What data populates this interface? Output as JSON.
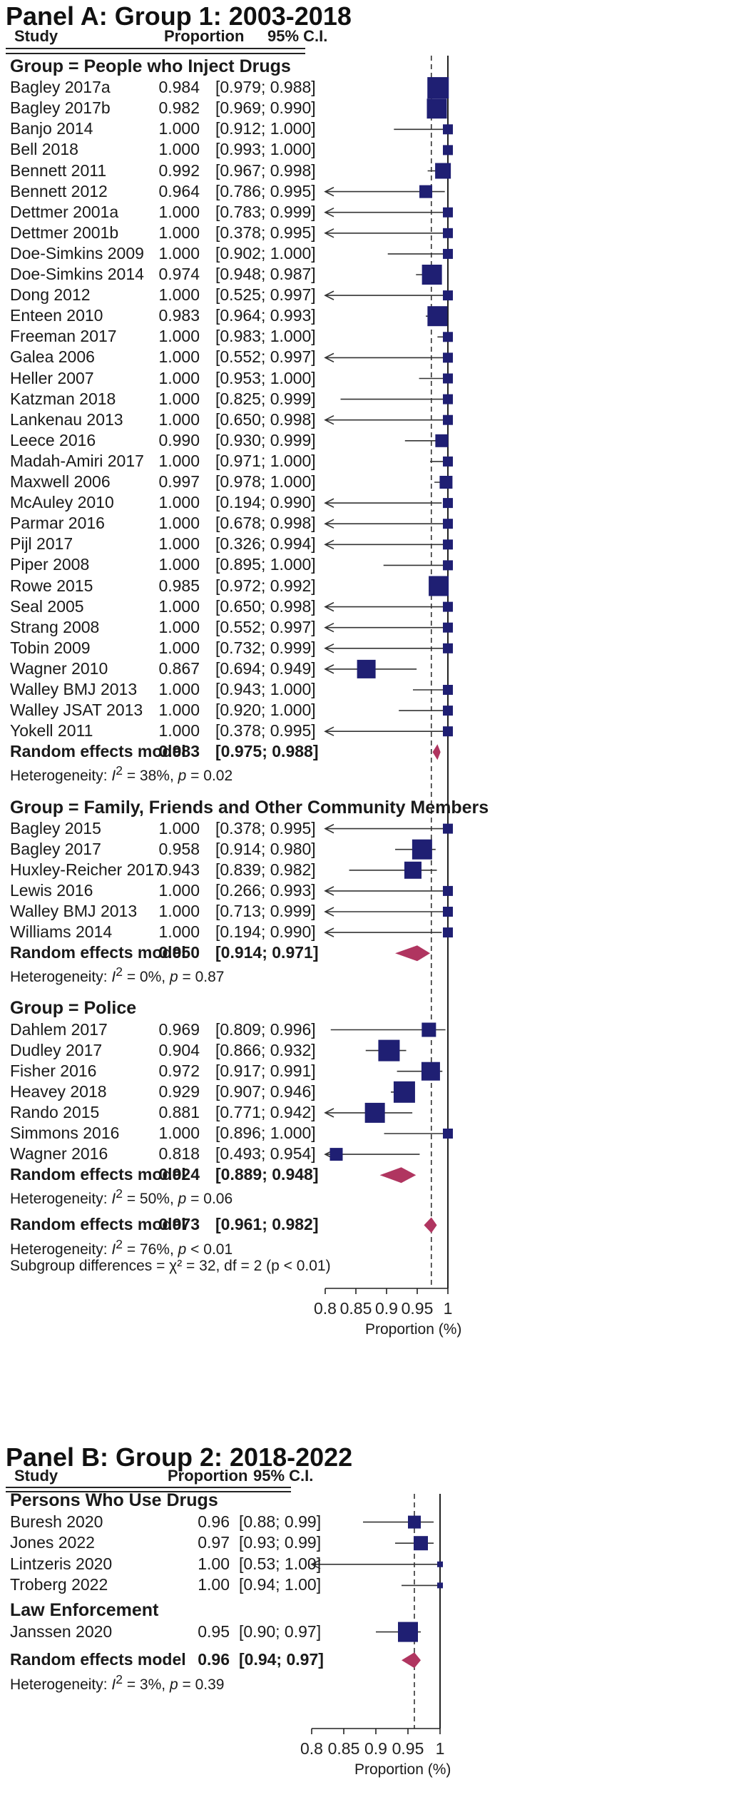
{
  "colors": {
    "box": "#1f1f73",
    "diamond": "#b03560",
    "line": "#333333"
  },
  "chart_data": [
    {
      "type": "forest",
      "title": "Panel A: Group 1: 2003-2018",
      "columns": {
        "study": "Study",
        "proportion": "Proportion",
        "ci": "95% C.I."
      },
      "xlabel": "Proportion (%)",
      "xlim": [
        0.8,
        1.0
      ],
      "ticks": [
        {
          "v": 0.8,
          "label": "0.8"
        },
        {
          "v": 0.85,
          "label": "0.85"
        },
        {
          "v": 0.9,
          "label": "0.9"
        },
        {
          "v": 0.95,
          "label": "0.95"
        },
        {
          "v": 1.0,
          "label": "1"
        }
      ],
      "overall_line": 0.973,
      "rows": [
        {
          "k": "group",
          "label": "Group = People who Inject Drugs"
        },
        {
          "k": "study",
          "name": "Bagley 2017a",
          "est": 0.984,
          "lo": 0.979,
          "hi": 0.988,
          "est_t": "0.984",
          "ci_t": "[0.979; 0.988]",
          "w": 30
        },
        {
          "k": "study",
          "name": "Bagley 2017b",
          "est": 0.982,
          "lo": 0.969,
          "hi": 0.99,
          "est_t": "0.982",
          "ci_t": "[0.969; 0.990]",
          "w": 28
        },
        {
          "k": "study",
          "name": "Banjo 2014",
          "est": 1.0,
          "lo": 0.912,
          "hi": 1.0,
          "est_t": "1.000",
          "ci_t": "[0.912; 1.000]",
          "w": 14
        },
        {
          "k": "study",
          "name": "Bell 2018",
          "est": 1.0,
          "lo": 0.993,
          "hi": 1.0,
          "est_t": "1.000",
          "ci_t": "[0.993; 1.000]",
          "w": 14
        },
        {
          "k": "study",
          "name": "Bennett 2011",
          "est": 0.992,
          "lo": 0.967,
          "hi": 0.998,
          "est_t": "0.992",
          "ci_t": "[0.967; 0.998]",
          "w": 22
        },
        {
          "k": "study",
          "name": "Bennett 2012",
          "est": 0.964,
          "lo": 0.786,
          "hi": 0.995,
          "est_t": "0.964",
          "ci_t": "[0.786; 0.995]",
          "w": 18
        },
        {
          "k": "study",
          "name": "Dettmer 2001a",
          "est": 1.0,
          "lo": 0.783,
          "hi": 0.999,
          "est_t": "1.000",
          "ci_t": "[0.783; 0.999]",
          "w": 14
        },
        {
          "k": "study",
          "name": "Dettmer 2001b",
          "est": 1.0,
          "lo": 0.378,
          "hi": 0.995,
          "est_t": "1.000",
          "ci_t": "[0.378; 0.995]",
          "w": 14
        },
        {
          "k": "study",
          "name": "Doe-Simkins 2009",
          "est": 1.0,
          "lo": 0.902,
          "hi": 1.0,
          "est_t": "1.000",
          "ci_t": "[0.902; 1.000]",
          "w": 14
        },
        {
          "k": "study",
          "name": "Doe-Simkins 2014",
          "est": 0.974,
          "lo": 0.948,
          "hi": 0.987,
          "est_t": "0.974",
          "ci_t": "[0.948; 0.987]",
          "w": 28
        },
        {
          "k": "study",
          "name": "Dong 2012",
          "est": 1.0,
          "lo": 0.525,
          "hi": 0.997,
          "est_t": "1.000",
          "ci_t": "[0.525; 0.997]",
          "w": 14
        },
        {
          "k": "study",
          "name": "Enteen 2010",
          "est": 0.983,
          "lo": 0.964,
          "hi": 0.993,
          "est_t": "0.983",
          "ci_t": "[0.964; 0.993]",
          "w": 28
        },
        {
          "k": "study",
          "name": "Freeman 2017",
          "est": 1.0,
          "lo": 0.983,
          "hi": 1.0,
          "est_t": "1.000",
          "ci_t": "[0.983; 1.000]",
          "w": 14
        },
        {
          "k": "study",
          "name": "Galea 2006",
          "est": 1.0,
          "lo": 0.552,
          "hi": 0.997,
          "est_t": "1.000",
          "ci_t": "[0.552; 0.997]",
          "w": 14
        },
        {
          "k": "study",
          "name": "Heller 2007",
          "est": 1.0,
          "lo": 0.953,
          "hi": 1.0,
          "est_t": "1.000",
          "ci_t": "[0.953; 1.000]",
          "w": 14
        },
        {
          "k": "study",
          "name": "Katzman 2018",
          "est": 1.0,
          "lo": 0.825,
          "hi": 0.999,
          "est_t": "1.000",
          "ci_t": "[0.825; 0.999]",
          "w": 14
        },
        {
          "k": "study",
          "name": "Lankenau 2013",
          "est": 1.0,
          "lo": 0.65,
          "hi": 0.998,
          "est_t": "1.000",
          "ci_t": "[0.650; 0.998]",
          "w": 14
        },
        {
          "k": "study",
          "name": "Leece 2016",
          "est": 0.99,
          "lo": 0.93,
          "hi": 0.999,
          "est_t": "0.990",
          "ci_t": "[0.930; 0.999]",
          "w": 18
        },
        {
          "k": "study",
          "name": "Madah-Amiri 2017",
          "est": 1.0,
          "lo": 0.971,
          "hi": 1.0,
          "est_t": "1.000",
          "ci_t": "[0.971; 1.000]",
          "w": 14
        },
        {
          "k": "study",
          "name": "Maxwell 2006",
          "est": 0.997,
          "lo": 0.978,
          "hi": 1.0,
          "est_t": "0.997",
          "ci_t": "[0.978; 1.000]",
          "w": 18
        },
        {
          "k": "study",
          "name": "McAuley 2010",
          "est": 1.0,
          "lo": 0.194,
          "hi": 0.99,
          "est_t": "1.000",
          "ci_t": "[0.194; 0.990]",
          "w": 14
        },
        {
          "k": "study",
          "name": "Parmar 2016",
          "est": 1.0,
          "lo": 0.678,
          "hi": 0.998,
          "est_t": "1.000",
          "ci_t": "[0.678; 0.998]",
          "w": 14
        },
        {
          "k": "study",
          "name": "Pijl 2017",
          "est": 1.0,
          "lo": 0.326,
          "hi": 0.994,
          "est_t": "1.000",
          "ci_t": "[0.326; 0.994]",
          "w": 14
        },
        {
          "k": "study",
          "name": "Piper 2008",
          "est": 1.0,
          "lo": 0.895,
          "hi": 1.0,
          "est_t": "1.000",
          "ci_t": "[0.895; 1.000]",
          "w": 14
        },
        {
          "k": "study",
          "name": "Rowe 2015",
          "est": 0.985,
          "lo": 0.972,
          "hi": 0.992,
          "est_t": "0.985",
          "ci_t": "[0.972; 0.992]",
          "w": 28
        },
        {
          "k": "study",
          "name": "Seal 2005",
          "est": 1.0,
          "lo": 0.65,
          "hi": 0.998,
          "est_t": "1.000",
          "ci_t": "[0.650; 0.998]",
          "w": 14
        },
        {
          "k": "study",
          "name": "Strang 2008",
          "est": 1.0,
          "lo": 0.552,
          "hi": 0.997,
          "est_t": "1.000",
          "ci_t": "[0.552; 0.997]",
          "w": 14
        },
        {
          "k": "study",
          "name": "Tobin 2009",
          "est": 1.0,
          "lo": 0.732,
          "hi": 0.999,
          "est_t": "1.000",
          "ci_t": "[0.732; 0.999]",
          "w": 14
        },
        {
          "k": "study",
          "name": "Wagner 2010",
          "est": 0.867,
          "lo": 0.694,
          "hi": 0.949,
          "est_t": "0.867",
          "ci_t": "[0.694; 0.949]",
          "w": 26
        },
        {
          "k": "study",
          "name": "Walley BMJ 2013",
          "est": 1.0,
          "lo": 0.943,
          "hi": 1.0,
          "est_t": "1.000",
          "ci_t": "[0.943; 1.000]",
          "w": 14
        },
        {
          "k": "study",
          "name": "Walley JSAT 2013",
          "est": 1.0,
          "lo": 0.92,
          "hi": 1.0,
          "est_t": "1.000",
          "ci_t": "[0.920; 1.000]",
          "w": 14
        },
        {
          "k": "study",
          "name": "Yokell 2011",
          "est": 1.0,
          "lo": 0.378,
          "hi": 0.995,
          "est_t": "1.000",
          "ci_t": "[0.378; 0.995]",
          "w": 14
        },
        {
          "k": "model",
          "name": "Random effects model",
          "est": 0.983,
          "lo": 0.975,
          "hi": 0.988,
          "est_t": "0.983",
          "ci_t": "[0.975; 0.988]"
        },
        {
          "k": "het",
          "pre": "Heterogeneity: ",
          "i2": "I",
          "post": " = 38%, ",
          "p": "p",
          "tail": " = 0.02"
        },
        {
          "k": "gap"
        },
        {
          "k": "group",
          "label": "Group = Family, Friends and Other Community Members"
        },
        {
          "k": "study",
          "name": "Bagley 2015",
          "est": 1.0,
          "lo": 0.378,
          "hi": 0.995,
          "est_t": "1.000",
          "ci_t": "[0.378; 0.995]",
          "w": 14
        },
        {
          "k": "study",
          "name": "Bagley 2017",
          "est": 0.958,
          "lo": 0.914,
          "hi": 0.98,
          "est_t": "0.958",
          "ci_t": "[0.914; 0.980]",
          "w": 28
        },
        {
          "k": "study",
          "name": "Huxley-Reicher 2017",
          "est": 0.943,
          "lo": 0.839,
          "hi": 0.982,
          "est_t": "0.943",
          "ci_t": "[0.839; 0.982]",
          "w": 24
        },
        {
          "k": "study",
          "name": "Lewis 2016",
          "est": 1.0,
          "lo": 0.266,
          "hi": 0.993,
          "est_t": "1.000",
          "ci_t": "[0.266; 0.993]",
          "w": 14
        },
        {
          "k": "study",
          "name": "Walley BMJ 2013",
          "est": 1.0,
          "lo": 0.713,
          "hi": 0.999,
          "est_t": "1.000",
          "ci_t": "[0.713; 0.999]",
          "w": 14
        },
        {
          "k": "study",
          "name": "Williams 2014",
          "est": 1.0,
          "lo": 0.194,
          "hi": 0.99,
          "est_t": "1.000",
          "ci_t": "[0.194; 0.990]",
          "w": 14
        },
        {
          "k": "model",
          "name": "Random effects model",
          "est": 0.95,
          "lo": 0.914,
          "hi": 0.971,
          "est_t": "0.950",
          "ci_t": "[0.914; 0.971]"
        },
        {
          "k": "het",
          "pre": "Heterogeneity: ",
          "i2": "I",
          "post": " = 0%, ",
          "p": "p",
          "tail": " = 0.87"
        },
        {
          "k": "gap"
        },
        {
          "k": "group",
          "label": "Group = Police"
        },
        {
          "k": "study",
          "name": "Dahlem 2017",
          "est": 0.969,
          "lo": 0.809,
          "hi": 0.996,
          "est_t": "0.969",
          "ci_t": "[0.809; 0.996]",
          "w": 20
        },
        {
          "k": "study",
          "name": "Dudley 2017",
          "est": 0.904,
          "lo": 0.866,
          "hi": 0.932,
          "est_t": "0.904",
          "ci_t": "[0.866; 0.932]",
          "w": 30
        },
        {
          "k": "study",
          "name": "Fisher 2016",
          "est": 0.972,
          "lo": 0.917,
          "hi": 0.991,
          "est_t": "0.972",
          "ci_t": "[0.917; 0.991]",
          "w": 26
        },
        {
          "k": "study",
          "name": "Heavey 2018",
          "est": 0.929,
          "lo": 0.907,
          "hi": 0.946,
          "est_t": "0.929",
          "ci_t": "[0.907; 0.946]",
          "w": 30
        },
        {
          "k": "study",
          "name": "Rando 2015",
          "est": 0.881,
          "lo": 0.771,
          "hi": 0.942,
          "est_t": "0.881",
          "ci_t": "[0.771; 0.942]",
          "w": 28
        },
        {
          "k": "study",
          "name": "Simmons 2016",
          "est": 1.0,
          "lo": 0.896,
          "hi": 1.0,
          "est_t": "1.000",
          "ci_t": "[0.896; 1.000]",
          "w": 14
        },
        {
          "k": "study",
          "name": "Wagner 2016",
          "est": 0.818,
          "lo": 0.493,
          "hi": 0.954,
          "est_t": "0.818",
          "ci_t": "[0.493; 0.954]",
          "w": 18
        },
        {
          "k": "model",
          "name": "Random effects model",
          "est": 0.924,
          "lo": 0.889,
          "hi": 0.948,
          "est_t": "0.924",
          "ci_t": "[0.889; 0.948]"
        },
        {
          "k": "het",
          "pre": "Heterogeneity: ",
          "i2": "I",
          "post": " = 50%, ",
          "p": "p",
          "tail": " = 0.06"
        },
        {
          "k": "gap"
        },
        {
          "k": "model",
          "name": "Random effects model",
          "est": 0.973,
          "lo": 0.961,
          "hi": 0.982,
          "est_t": "0.973",
          "ci_t": "[0.961; 0.982]"
        },
        {
          "k": "het",
          "pre": "Heterogeneity: ",
          "i2": "I",
          "post": " = 76%, ",
          "p": "p",
          "tail": " < 0.01"
        },
        {
          "k": "subgroup",
          "text": "Subgroup differences = χ² = 32, df = 2 (p < 0.01)"
        }
      ]
    },
    {
      "type": "forest",
      "title": "Panel B: Group 2: 2018-2022",
      "columns": {
        "study": "Study",
        "proportion": "Proportion",
        "ci": "95% C.I."
      },
      "xlabel": "Proportion (%)",
      "xlim": [
        0.8,
        1.0
      ],
      "ticks": [
        {
          "v": 0.8,
          "label": "0.8"
        },
        {
          "v": 0.85,
          "label": "0.85"
        },
        {
          "v": 0.9,
          "label": "0.9"
        },
        {
          "v": 0.95,
          "label": "0.95"
        },
        {
          "v": 1.0,
          "label": "1"
        }
      ],
      "overall_line": 0.96,
      "rows": [
        {
          "k": "group",
          "label": "Persons Who Use Drugs"
        },
        {
          "k": "study",
          "name": "Buresh 2020",
          "est": 0.96,
          "lo": 0.88,
          "hi": 0.99,
          "est_t": "0.96",
          "ci_t": "[0.88; 0.99]",
          "w": 18
        },
        {
          "k": "study",
          "name": "Jones 2022",
          "est": 0.97,
          "lo": 0.93,
          "hi": 0.99,
          "est_t": "0.97",
          "ci_t": "[0.93; 0.99]",
          "w": 20
        },
        {
          "k": "study",
          "name": "Lintzeris 2020",
          "est": 1.0,
          "lo": 0.53,
          "hi": 1.0,
          "est_t": "1.00",
          "ci_t": "[0.53; 1.00]",
          "w": 8
        },
        {
          "k": "study",
          "name": "Troberg 2022",
          "est": 1.0,
          "lo": 0.94,
          "hi": 1.0,
          "est_t": "1.00",
          "ci_t": "[0.94; 1.00]",
          "w": 8
        },
        {
          "k": "group",
          "label": "Law Enforcement"
        },
        {
          "k": "study",
          "name": "Janssen 2020",
          "est": 0.95,
          "lo": 0.9,
          "hi": 0.97,
          "est_t": "0.95",
          "ci_t": "[0.90; 0.97]",
          "w": 28
        },
        {
          "k": "gap"
        },
        {
          "k": "model",
          "name": "Random effects model",
          "est": 0.96,
          "lo": 0.94,
          "hi": 0.97,
          "est_t": "0.96",
          "ci_t": "[0.94; 0.97]"
        },
        {
          "k": "het",
          "pre": "Heterogeneity: ",
          "i2": "I",
          "post": " = 3%, ",
          "p": "p",
          "tail": " = 0.39"
        }
      ]
    }
  ]
}
